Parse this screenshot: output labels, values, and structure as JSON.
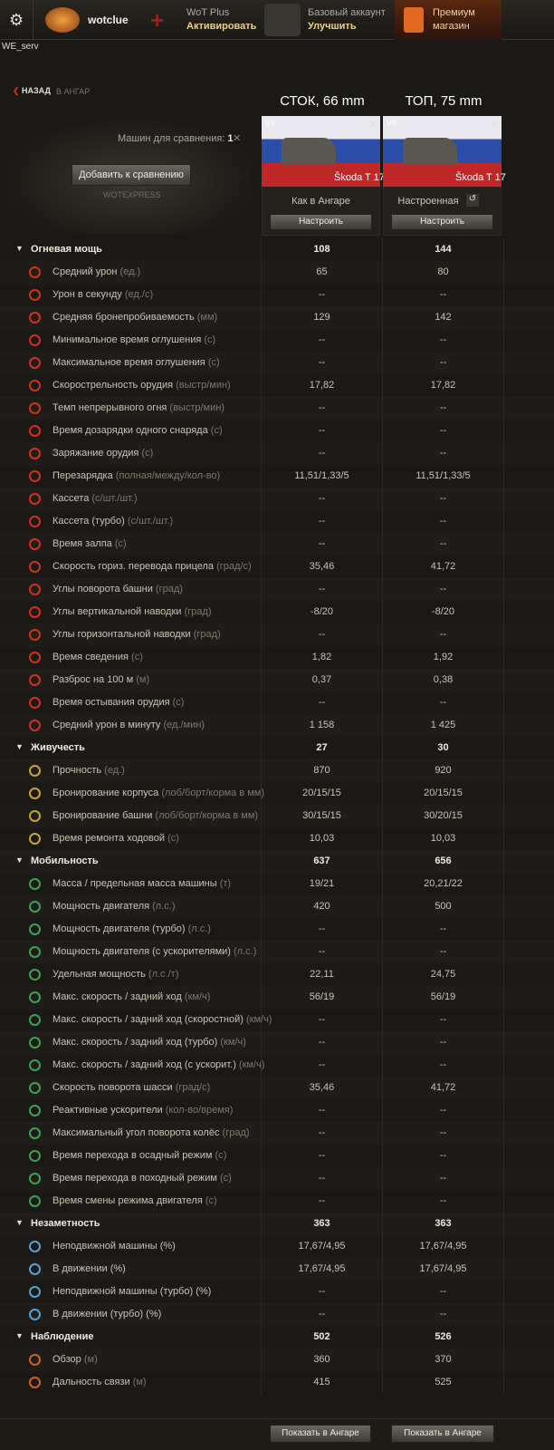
{
  "topbar": {
    "user": "wotclue",
    "plus": {
      "title": "WoT Plus",
      "action": "Активировать"
    },
    "account": {
      "title": "Базовый аккаунт",
      "action": "Улучшить"
    },
    "shop": {
      "title": "Премиум",
      "subtitle": "магазин"
    }
  },
  "server": "WE_serv",
  "nav": {
    "back": "НАЗАД",
    "to": "В АНГАР"
  },
  "columns": [
    "СТОК, 66 mm",
    "ТОП, 75 mm"
  ],
  "compare": {
    "count_label": "Машин для сравнения:",
    "count": "1",
    "add": "Добавить к сравнению",
    "brand": "WOTEXPRESS"
  },
  "tanks": [
    {
      "tier": "VII",
      "name": "Škoda T 17",
      "state": "Как в Ангаре",
      "button": "Настроить"
    },
    {
      "tier": "VII",
      "name": "Škoda T 17",
      "state": "Настроенная",
      "button": "Настроить"
    }
  ],
  "sections": [
    {
      "title": "Огневая мощь",
      "v1": "108",
      "v2": "144",
      "rows": [
        {
          "label": "Средний урон",
          "unit": "(ед.)",
          "v1": "65",
          "v2": "80"
        },
        {
          "label": "Урон в секунду",
          "unit": "(ед./с)",
          "v1": "--",
          "v2": "--"
        },
        {
          "label": "Средняя бронепробиваемость",
          "unit": "(мм)",
          "v1": "129",
          "v2": "142"
        },
        {
          "label": "Минимальное время оглушения",
          "unit": "(с)",
          "v1": "--",
          "v2": "--"
        },
        {
          "label": "Максимальное время оглушения",
          "unit": "(с)",
          "v1": "--",
          "v2": "--"
        },
        {
          "label": "Скорострельность орудия",
          "unit": "(выстр/мин)",
          "v1": "17,82",
          "v2": "17,82"
        },
        {
          "label": "Темп непрерывного огня",
          "unit": "(выстр/мин)",
          "v1": "--",
          "v2": "--"
        },
        {
          "label": "Время дозарядки одного снаряда",
          "unit": "(с)",
          "v1": "--",
          "v2": "--"
        },
        {
          "label": "Заряжание орудия",
          "unit": "(с)",
          "v1": "--",
          "v2": "--"
        },
        {
          "label": "Перезарядка",
          "unit": "(полная/между/кол-во)",
          "v1": "11,51/1,33/5",
          "v2": "11,51/1,33/5"
        },
        {
          "label": "Кассета",
          "unit": "(с/шт./шт.)",
          "v1": "--",
          "v2": "--"
        },
        {
          "label": "Кассета (турбо)",
          "unit": "(с/шт./шт.)",
          "v1": "--",
          "v2": "--"
        },
        {
          "label": "Время залпа",
          "unit": "(с)",
          "v1": "--",
          "v2": "--"
        },
        {
          "label": "Скорость гориз. перевода прицела",
          "unit": "(град/с)",
          "v1": "35,46",
          "v2": "41,72"
        },
        {
          "label": "Углы поворота башни",
          "unit": "(град)",
          "v1": "--",
          "v2": "--"
        },
        {
          "label": "Углы вертикальной наводки",
          "unit": "(град)",
          "v1": "-8/20",
          "v2": "-8/20"
        },
        {
          "label": "Углы горизонтальной наводки",
          "unit": "(град)",
          "v1": "--",
          "v2": "--"
        },
        {
          "label": "Время сведения",
          "unit": "(с)",
          "v1": "1,82",
          "v2": "1,92"
        },
        {
          "label": "Разброс на 100 м",
          "unit": "(м)",
          "v1": "0,37",
          "v2": "0,38"
        },
        {
          "label": "Время остывания орудия",
          "unit": "(с)",
          "v1": "--",
          "v2": "--"
        },
        {
          "label": "Средний урон в минуту",
          "unit": "(ед./мин)",
          "v1": "1 158",
          "v2": "1 425"
        }
      ]
    },
    {
      "title": "Живучесть",
      "v1": "27",
      "v2": "30",
      "rows": [
        {
          "label": "Прочность",
          "unit": "(ед.)",
          "v1": "870",
          "v2": "920"
        },
        {
          "label": "Бронирование корпуса",
          "unit": "(лоб/борт/корма в мм)",
          "v1": "20/15/15",
          "v2": "20/15/15"
        },
        {
          "label": "Бронирование башни",
          "unit": "(лоб/борт/корма в мм)",
          "v1": "30/15/15",
          "v2": "30/20/15"
        },
        {
          "label": "Время ремонта ходовой",
          "unit": "(с)",
          "v1": "10,03",
          "v2": "10,03"
        }
      ]
    },
    {
      "title": "Мобильность",
      "v1": "637",
      "v2": "656",
      "rows": [
        {
          "label": "Масса / предельная масса машины",
          "unit": "(т)",
          "v1": "19/21",
          "v2": "20,21/22"
        },
        {
          "label": "Мощность двигателя",
          "unit": "(л.с.)",
          "v1": "420",
          "v2": "500"
        },
        {
          "label": "Мощность двигателя (турбо)",
          "unit": "(л.с.)",
          "v1": "--",
          "v2": "--"
        },
        {
          "label": "Мощность двигателя (с ускорителями)",
          "unit": "(л.с.)",
          "v1": "--",
          "v2": "--"
        },
        {
          "label": "Удельная мощность",
          "unit": "(л.с./т)",
          "v1": "22,11",
          "v2": "24,75"
        },
        {
          "label": "Макс. скорость / задний ход",
          "unit": "(км/ч)",
          "v1": "56/19",
          "v2": "56/19"
        },
        {
          "label": "Макс. скорость / задний ход (скоростной)",
          "unit": "(км/ч)",
          "v1": "--",
          "v2": "--"
        },
        {
          "label": "Макс. скорость / задний ход (турбо)",
          "unit": "(км/ч)",
          "v1": "--",
          "v2": "--"
        },
        {
          "label": "Макс. скорость / задний ход (с ускорит.)",
          "unit": "(км/ч)",
          "v1": "--",
          "v2": "--"
        },
        {
          "label": "Скорость поворота шасси",
          "unit": "(град/с)",
          "v1": "35,46",
          "v2": "41,72"
        },
        {
          "label": "Реактивные ускорители",
          "unit": "(кол-во/время)",
          "v1": "--",
          "v2": "--"
        },
        {
          "label": "Максимальный угол поворота колёс",
          "unit": "(град)",
          "v1": "--",
          "v2": "--"
        },
        {
          "label": "Время перехода в осадный режим",
          "unit": "(с)",
          "v1": "--",
          "v2": "--"
        },
        {
          "label": "Время перехода в походный режим",
          "unit": "(с)",
          "v1": "--",
          "v2": "--"
        },
        {
          "label": "Время смены режима двигателя",
          "unit": "(с)",
          "v1": "--",
          "v2": "--"
        }
      ]
    },
    {
      "title": "Незаметность",
      "v1": "363",
      "v2": "363",
      "rows": [
        {
          "label": "Неподвижной машины (%)",
          "v1": "17,67/4,95",
          "v2": "17,67/4,95"
        },
        {
          "label": "В движении (%)",
          "v1": "17,67/4,95",
          "v2": "17,67/4,95"
        },
        {
          "label": "Неподвижной машины (турбо) (%)",
          "v1": "--",
          "v2": "--"
        },
        {
          "label": "В движении (турбо) (%)",
          "v1": "--",
          "v2": "--"
        }
      ]
    },
    {
      "title": "Наблюдение",
      "v1": "502",
      "v2": "526",
      "rows": [
        {
          "label": "Обзор",
          "unit": "(м)",
          "v1": "360",
          "v2": "370"
        },
        {
          "label": "Дальность связи",
          "unit": "(м)",
          "v1": "415",
          "v2": "525"
        }
      ]
    }
  ],
  "footer": [
    "Показать в Ангаре",
    "Показать в Ангаре"
  ]
}
